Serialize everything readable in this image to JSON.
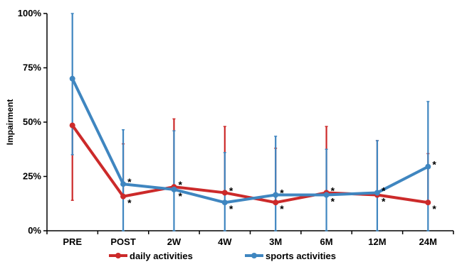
{
  "chart_data": {
    "type": "line",
    "ylabel": "Impairment",
    "xlabel": "",
    "ylim": [
      0,
      100
    ],
    "yticks": [
      "0%",
      "25%",
      "50%",
      "75%",
      "100%"
    ],
    "ytick_values": [
      0,
      25,
      50,
      75,
      100
    ],
    "categories": [
      "PRE",
      "POST",
      "2W",
      "4W",
      "3M",
      "6M",
      "12M",
      "24M"
    ],
    "grid": false,
    "legend_position": "bottom",
    "significance_marker": "*",
    "series": [
      {
        "name": "daily activities",
        "color": "#cc2a2a",
        "values": [
          48.5,
          15.8,
          20.2,
          17.5,
          13.0,
          17.5,
          16.5,
          13.0
        ],
        "upper": [
          null,
          40.0,
          51.5,
          48.0,
          38.0,
          48.0,
          41.5,
          35.5
        ],
        "lower": [
          14.0,
          null,
          null,
          null,
          null,
          null,
          null,
          null
        ],
        "significant": [
          false,
          true,
          true,
          true,
          true,
          true,
          true,
          true
        ]
      },
      {
        "name": "sports activities",
        "color": "#3f86c0",
        "values": [
          70.0,
          21.5,
          19.0,
          13.0,
          16.5,
          16.5,
          17.5,
          29.5
        ],
        "upper": [
          100.0,
          46.5,
          46.0,
          36.0,
          43.5,
          37.5,
          41.5,
          59.5
        ],
        "lower": [
          35.0,
          0,
          0,
          0,
          0,
          0,
          0,
          0
        ],
        "significant": [
          false,
          true,
          true,
          true,
          true,
          true,
          true,
          true
        ]
      }
    ]
  }
}
